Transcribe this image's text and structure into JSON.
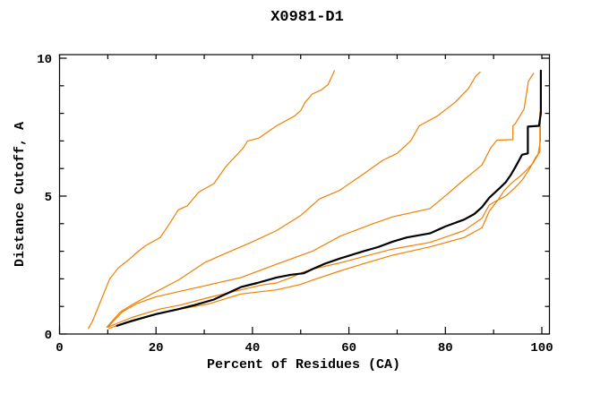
{
  "window": {
    "title": "X0981-D1"
  },
  "chart_data": {
    "type": "line",
    "title": "X0981-D1",
    "xlabel": "Percent of Residues (CA)",
    "ylabel": "Distance Cutoff, A",
    "xlim": [
      0,
      101.5
    ],
    "ylim": [
      0,
      10.15
    ],
    "grid": false,
    "legend": "none",
    "frame": "full-box-inward-ticks",
    "x_ticks": {
      "major": [
        0,
        20,
        40,
        60,
        80,
        100
      ],
      "minor": [
        10,
        30,
        50,
        70,
        90
      ]
    },
    "y_ticks": {
      "major": [
        0,
        5,
        10
      ],
      "minor": [
        1,
        2,
        3,
        4,
        6,
        7,
        8,
        9
      ]
    },
    "colors": {
      "reference_curve": "#ef8000",
      "main_curve": "#000000",
      "frame": "#000000"
    },
    "series": [
      {
        "name": "orange-curve-1",
        "color": "#ef8000",
        "width": 1.2,
        "points": [
          [
            6,
            0.2
          ],
          [
            6.8,
            0.45
          ],
          [
            7.5,
            0.75
          ],
          [
            8.9,
            1.35
          ],
          [
            10.4,
            2.0
          ],
          [
            12.2,
            2.4
          ],
          [
            14.4,
            2.7
          ],
          [
            16,
            2.95
          ],
          [
            17.8,
            3.2
          ],
          [
            20.9,
            3.5
          ],
          [
            22.8,
            4.0
          ],
          [
            24.6,
            4.5
          ],
          [
            26.5,
            4.65
          ],
          [
            28.9,
            5.15
          ],
          [
            32,
            5.45
          ],
          [
            34.4,
            6.05
          ],
          [
            35.7,
            6.3
          ],
          [
            38.1,
            6.75
          ],
          [
            39,
            7.0
          ],
          [
            41.3,
            7.1
          ],
          [
            45,
            7.55
          ],
          [
            48.7,
            7.9
          ],
          [
            50,
            8.1
          ],
          [
            50.9,
            8.4
          ],
          [
            52.4,
            8.7
          ],
          [
            54.3,
            8.85
          ],
          [
            55.7,
            9.05
          ],
          [
            56.1,
            9.2
          ],
          [
            57,
            9.55
          ]
        ]
      },
      {
        "name": "orange-curve-2",
        "color": "#ef8000",
        "width": 1.2,
        "points": [
          [
            9.8,
            0.25
          ],
          [
            12.6,
            0.8
          ],
          [
            15.4,
            1.1
          ],
          [
            19.1,
            1.45
          ],
          [
            24.6,
            1.95
          ],
          [
            30.2,
            2.6
          ],
          [
            34.8,
            2.95
          ],
          [
            39.4,
            3.3
          ],
          [
            45,
            3.75
          ],
          [
            50,
            4.3
          ],
          [
            53.9,
            4.9
          ],
          [
            58,
            5.2
          ],
          [
            63,
            5.8
          ],
          [
            67,
            6.3
          ],
          [
            70,
            6.55
          ],
          [
            72.8,
            7.0
          ],
          [
            74.6,
            7.55
          ],
          [
            78.3,
            7.9
          ],
          [
            82,
            8.4
          ],
          [
            84.8,
            8.9
          ],
          [
            86.3,
            9.35
          ],
          [
            87.2,
            9.5
          ]
        ]
      },
      {
        "name": "orange-curve-3",
        "color": "#ef8000",
        "width": 1.2,
        "points": [
          [
            10,
            0.25
          ],
          [
            13,
            0.8
          ],
          [
            16,
            1.1
          ],
          [
            20,
            1.35
          ],
          [
            25,
            1.55
          ],
          [
            30.2,
            1.75
          ],
          [
            37.6,
            2.05
          ],
          [
            45,
            2.53
          ],
          [
            52.4,
            3.0
          ],
          [
            58.2,
            3.55
          ],
          [
            65,
            4.0
          ],
          [
            69.1,
            4.25
          ],
          [
            76.8,
            4.55
          ],
          [
            80.6,
            5.1
          ],
          [
            83.9,
            5.6
          ],
          [
            87.6,
            6.13
          ],
          [
            89.4,
            6.75
          ],
          [
            90.7,
            7.03
          ],
          [
            94,
            7.05
          ],
          [
            94,
            7.55
          ],
          [
            94.4,
            7.6
          ],
          [
            96.3,
            8.15
          ],
          [
            96.9,
            8.8
          ],
          [
            97.2,
            9.15
          ],
          [
            97.7,
            9.3
          ],
          [
            98.3,
            9.45
          ]
        ]
      },
      {
        "name": "orange-curve-4",
        "color": "#ef8000",
        "width": 1.2,
        "points": [
          [
            10,
            0.25
          ],
          [
            15,
            0.6
          ],
          [
            20.6,
            0.9
          ],
          [
            25,
            1.05
          ],
          [
            31.1,
            1.33
          ],
          [
            37.6,
            1.6
          ],
          [
            42,
            1.78
          ],
          [
            45,
            1.85
          ],
          [
            48,
            2.05
          ],
          [
            50.6,
            2.25
          ],
          [
            52.4,
            2.35
          ],
          [
            58.2,
            2.58
          ],
          [
            64,
            2.85
          ],
          [
            69.1,
            3.08
          ],
          [
            76.8,
            3.32
          ],
          [
            83.9,
            3.75
          ],
          [
            87.6,
            4.2
          ],
          [
            89.1,
            4.68
          ],
          [
            90.9,
            4.86
          ],
          [
            92.5,
            5.0
          ],
          [
            94.4,
            5.3
          ],
          [
            96,
            5.6
          ],
          [
            97.5,
            6.0
          ],
          [
            98.7,
            6.4
          ],
          [
            99.6,
            6.6
          ],
          [
            99.6,
            8.05
          ]
        ]
      },
      {
        "name": "orange-curve-5",
        "color": "#ef8000",
        "width": 1.2,
        "points": [
          [
            10.2,
            0.2
          ],
          [
            15,
            0.5
          ],
          [
            20.6,
            0.75
          ],
          [
            25,
            0.9
          ],
          [
            31.1,
            1.1
          ],
          [
            37.6,
            1.45
          ],
          [
            45,
            1.6
          ],
          [
            50,
            1.8
          ],
          [
            52.4,
            1.95
          ],
          [
            58.2,
            2.29
          ],
          [
            64,
            2.6
          ],
          [
            69.1,
            2.86
          ],
          [
            76.8,
            3.16
          ],
          [
            83.9,
            3.5
          ],
          [
            87.6,
            3.85
          ],
          [
            89.1,
            4.45
          ],
          [
            90.9,
            4.86
          ],
          [
            92.2,
            5.2
          ],
          [
            93.9,
            5.5
          ],
          [
            95.6,
            5.74
          ],
          [
            96.9,
            5.95
          ],
          [
            98.2,
            6.2
          ],
          [
            99.2,
            6.5
          ],
          [
            99.7,
            7.0
          ],
          [
            99.7,
            8.0
          ]
        ]
      },
      {
        "name": "black-main-curve",
        "color": "#000000",
        "width": 2.2,
        "points": [
          [
            11.9,
            0.3
          ],
          [
            14,
            0.42
          ],
          [
            17.2,
            0.58
          ],
          [
            20,
            0.72
          ],
          [
            24.6,
            0.9
          ],
          [
            28,
            1.05
          ],
          [
            32,
            1.25
          ],
          [
            37.6,
            1.7
          ],
          [
            41,
            1.85
          ],
          [
            45,
            2.05
          ],
          [
            48,
            2.15
          ],
          [
            50.6,
            2.2
          ],
          [
            52.4,
            2.35
          ],
          [
            55,
            2.55
          ],
          [
            58.2,
            2.74
          ],
          [
            63,
            3.0
          ],
          [
            66,
            3.15
          ],
          [
            69.1,
            3.35
          ],
          [
            72,
            3.5
          ],
          [
            76.8,
            3.65
          ],
          [
            80,
            3.9
          ],
          [
            83.9,
            4.15
          ],
          [
            86,
            4.35
          ],
          [
            87.6,
            4.6
          ],
          [
            89.1,
            4.94
          ],
          [
            91.3,
            5.3
          ],
          [
            92.5,
            5.5
          ],
          [
            93.5,
            5.75
          ],
          [
            94.5,
            6.05
          ],
          [
            95.9,
            6.5
          ],
          [
            97.1,
            6.55
          ],
          [
            97.1,
            7.52
          ],
          [
            99.4,
            7.55
          ],
          [
            99.8,
            8.0
          ],
          [
            99.8,
            9.55
          ]
        ]
      }
    ]
  }
}
